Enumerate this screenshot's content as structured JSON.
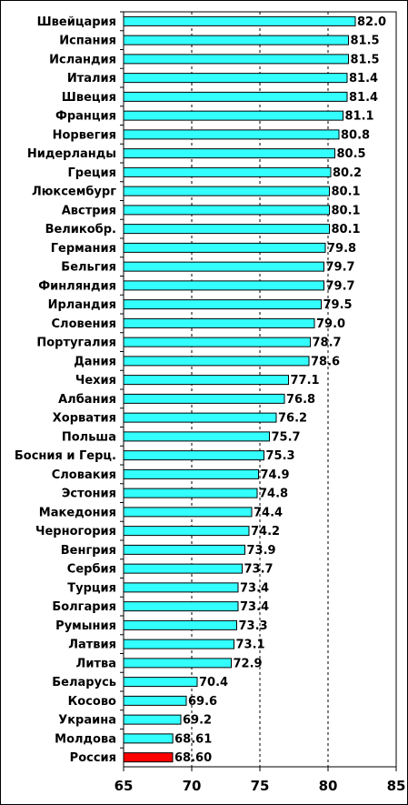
{
  "chart_data": {
    "type": "bar",
    "orientation": "horizontal",
    "categories": [
      "Швейцария",
      "Испания",
      "Исландия",
      "Италия",
      "Швеция",
      "Франция",
      "Норвегия",
      "Нидерланды",
      "Греция",
      "Люксембург",
      "Австрия",
      "Великобр.",
      "Германия",
      "Бельгия",
      "Финляндия",
      "Ирландия",
      "Словения",
      "Португалия",
      "Дания",
      "Чехия",
      "Албания",
      "Хорватия",
      "Польша",
      "Босния и Герц.",
      "Словакия",
      "Эстония",
      "Македония",
      "Черногория",
      "Венгрия",
      "Сербия",
      "Турция",
      "Болгария",
      "Румыния",
      "Латвия",
      "Литва",
      "Беларусь",
      "Косово",
      "Украина",
      "Молдова",
      "Россия"
    ],
    "values": [
      82.0,
      81.5,
      81.5,
      81.4,
      81.4,
      81.1,
      80.8,
      80.5,
      80.2,
      80.1,
      80.1,
      80.1,
      79.8,
      79.7,
      79.7,
      79.5,
      79.0,
      78.7,
      78.6,
      77.1,
      76.8,
      76.2,
      75.7,
      75.3,
      74.9,
      74.8,
      74.4,
      74.2,
      73.9,
      73.7,
      73.4,
      73.4,
      73.3,
      73.1,
      72.9,
      70.4,
      69.6,
      69.2,
      68.61,
      68.6
    ],
    "value_labels": [
      "82.0",
      "81.5",
      "81.5",
      "81.4",
      "81.4",
      "81.1",
      "80.8",
      "80.5",
      "80.2",
      "80.1",
      "80.1",
      "80.1",
      "79.8",
      "79.7",
      "79.7",
      "79.5",
      "79.0",
      "78.7",
      "78.6",
      "77.1",
      "76.8",
      "76.2",
      "75.7",
      "75.3",
      "74.9",
      "74.8",
      "74.4",
      "74.2",
      "73.9",
      "73.7",
      "73.4",
      "73.4",
      "73.3",
      "73.1",
      "72.9",
      "70.4",
      "69.6",
      "69.2",
      "68.61",
      "68.60"
    ],
    "xlim": [
      65,
      85
    ],
    "xticks": [
      "65",
      "70",
      "75",
      "80",
      "85"
    ],
    "grid": "vertical dashed at major ticks",
    "colors": {
      "bar": "#33FFFF",
      "highlight": "#FF0000",
      "bar_border": "#000000"
    },
    "highlight_index": 39,
    "title": "",
    "xlabel": "",
    "ylabel": ""
  }
}
